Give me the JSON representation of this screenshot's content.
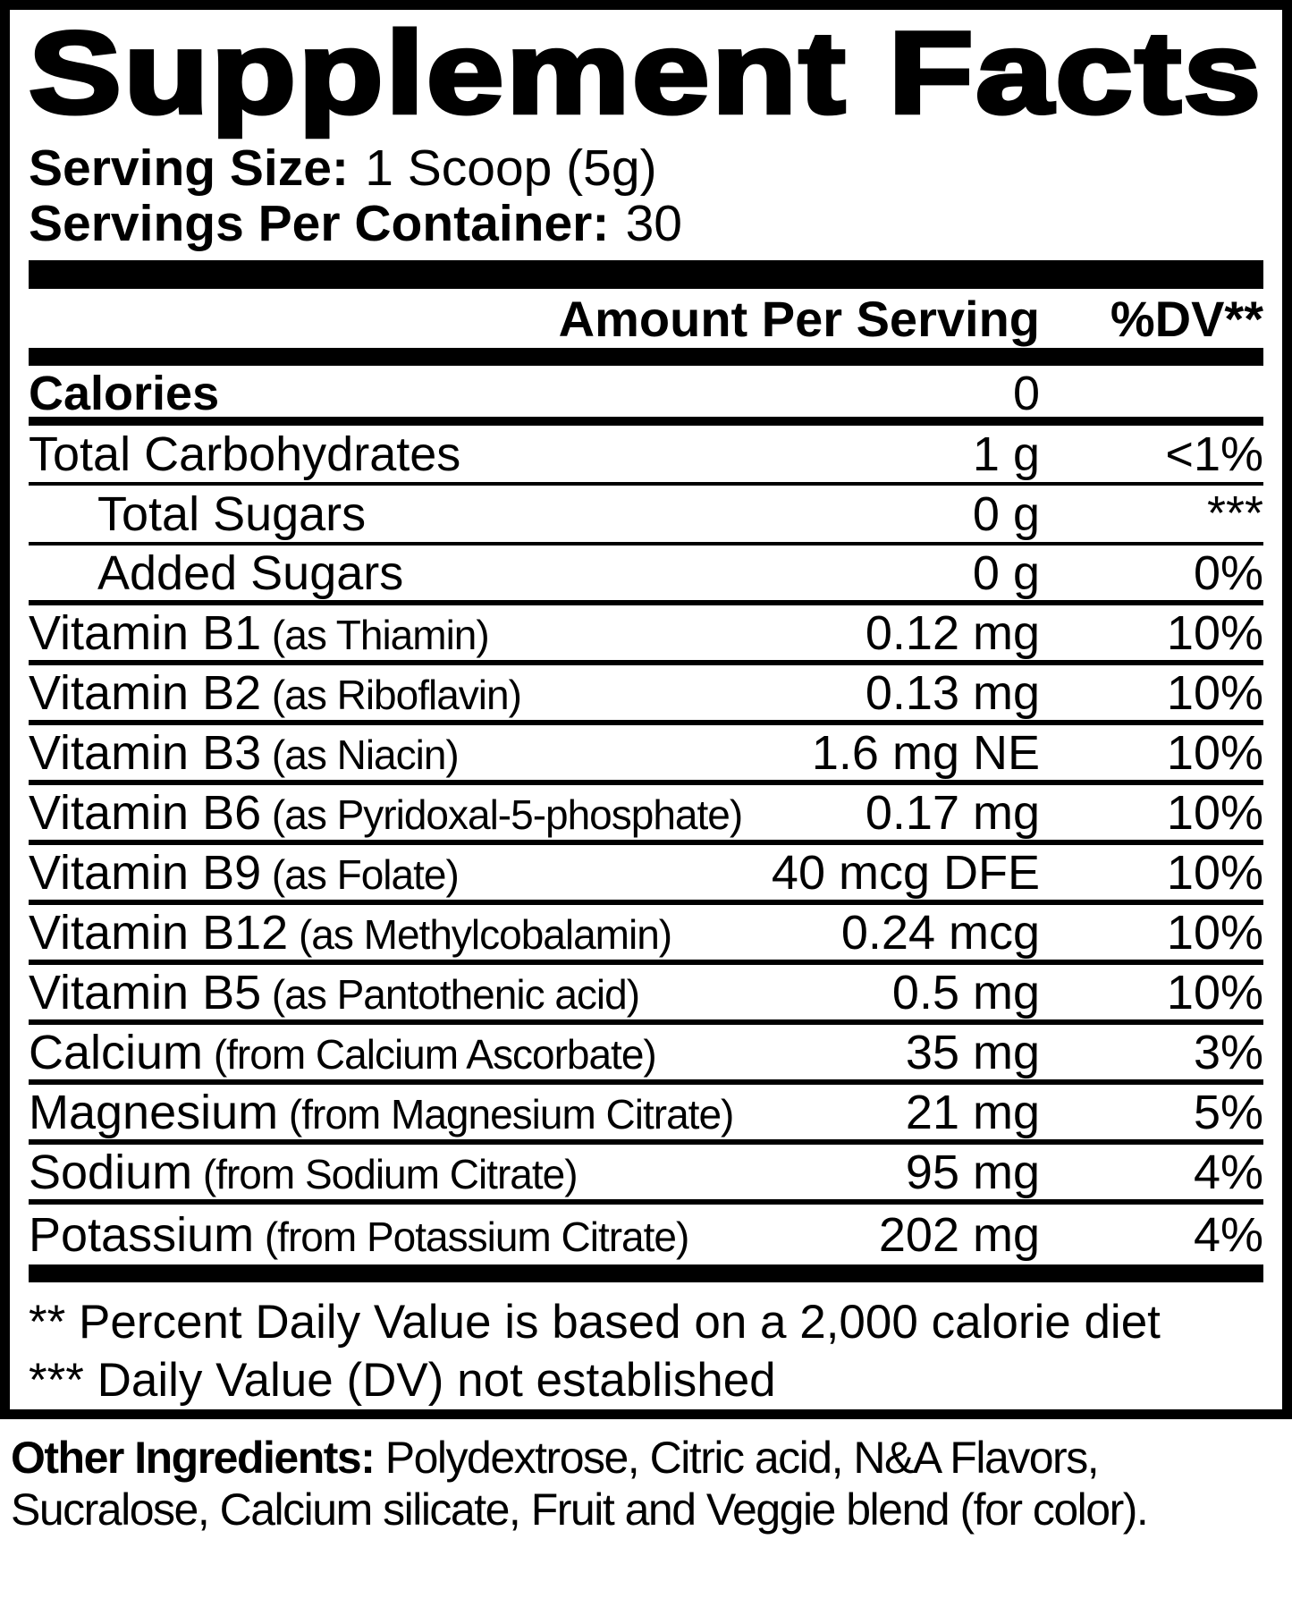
{
  "colors": {
    "ink": "#000000",
    "paper": "#ffffff"
  },
  "label": {
    "title": "Supplement Facts",
    "serving_size_label": "Serving Size:",
    "serving_size_value": "1 Scoop (5g)",
    "servings_per_container_label": "Servings Per Container:",
    "servings_per_container_value": "30",
    "header": {
      "amount": "Amount Per Serving",
      "dv": "%DV**"
    },
    "rows": [
      {
        "name": "Calories",
        "paren": "",
        "amount": "0",
        "dv": "",
        "bold": true,
        "indent": false,
        "dv_top": false,
        "sep": "thick"
      },
      {
        "name": "Total Carbohydrates",
        "paren": "",
        "amount": "1 g",
        "dv": "<1%",
        "bold": false,
        "indent": false,
        "dv_top": false,
        "sep": "thin"
      },
      {
        "name": "Total Sugars",
        "paren": "",
        "amount": "0 g",
        "dv": "***",
        "bold": false,
        "indent": true,
        "dv_top": true,
        "sep": "thin"
      },
      {
        "name": "Added Sugars",
        "paren": "",
        "amount": "0 g",
        "dv": "0%",
        "bold": false,
        "indent": true,
        "dv_top": false,
        "sep": "med"
      },
      {
        "name": "Vitamin B1",
        "paren": "(as Thiamin)",
        "amount": "0.12 mg",
        "dv": "10%",
        "bold": false,
        "indent": false,
        "dv_top": false,
        "sep": "med"
      },
      {
        "name": "Vitamin B2",
        "paren": "(as Riboflavin)",
        "amount": "0.13 mg",
        "dv": "10%",
        "bold": false,
        "indent": false,
        "dv_top": false,
        "sep": "med"
      },
      {
        "name": "Vitamin B3",
        "paren": "(as Niacin)",
        "amount": "1.6 mg NE",
        "dv": "10%",
        "bold": false,
        "indent": false,
        "dv_top": false,
        "sep": "med"
      },
      {
        "name": "Vitamin B6",
        "paren": "(as Pyridoxal-5-phosphate)",
        "amount": "0.17 mg",
        "dv": "10%",
        "bold": false,
        "indent": false,
        "dv_top": false,
        "sep": "med"
      },
      {
        "name": "Vitamin B9",
        "paren": "(as Folate)",
        "amount": "40 mcg DFE",
        "dv": "10%",
        "bold": false,
        "indent": false,
        "dv_top": false,
        "sep": "med"
      },
      {
        "name": "Vitamin B12",
        "paren": "(as Methylcobalamin)",
        "amount": "0.24 mcg",
        "dv": "10%",
        "bold": false,
        "indent": false,
        "dv_top": false,
        "sep": "med"
      },
      {
        "name": "Vitamin B5",
        "paren": "(as Pantothenic acid)",
        "amount": "0.5 mg",
        "dv": "10%",
        "bold": false,
        "indent": false,
        "dv_top": false,
        "sep": "med"
      },
      {
        "name": "Calcium",
        "paren": "(from Calcium Ascorbate)",
        "amount": "35 mg",
        "dv": "3%",
        "bold": false,
        "indent": false,
        "dv_top": false,
        "sep": "med"
      },
      {
        "name": "Magnesium",
        "paren": "(from Magnesium Citrate)",
        "amount": "21 mg",
        "dv": "5%",
        "bold": false,
        "indent": false,
        "dv_top": false,
        "sep": "med"
      },
      {
        "name": "Sodium",
        "paren": "(from Sodium Citrate)",
        "amount": "95 mg",
        "dv": "4%",
        "bold": false,
        "indent": false,
        "dv_top": false,
        "sep": "med"
      },
      {
        "name": "Potassium",
        "paren": "(from Potassium Citrate)",
        "amount": "202 mg",
        "dv": "4%",
        "bold": false,
        "indent": false,
        "dv_top": false,
        "sep": "none"
      }
    ],
    "footnotes": [
      "** Percent Daily Value is based on a 2,000 calorie diet",
      "*** Daily Value (DV) not established"
    ],
    "other_ingredients": {
      "label": "Other Ingredients:",
      "line1": " Polydextrose, Citric acid, N&A Flavors,",
      "line2": "Sucralose, Calcium silicate, Fruit and Veggie blend (for color)."
    }
  }
}
